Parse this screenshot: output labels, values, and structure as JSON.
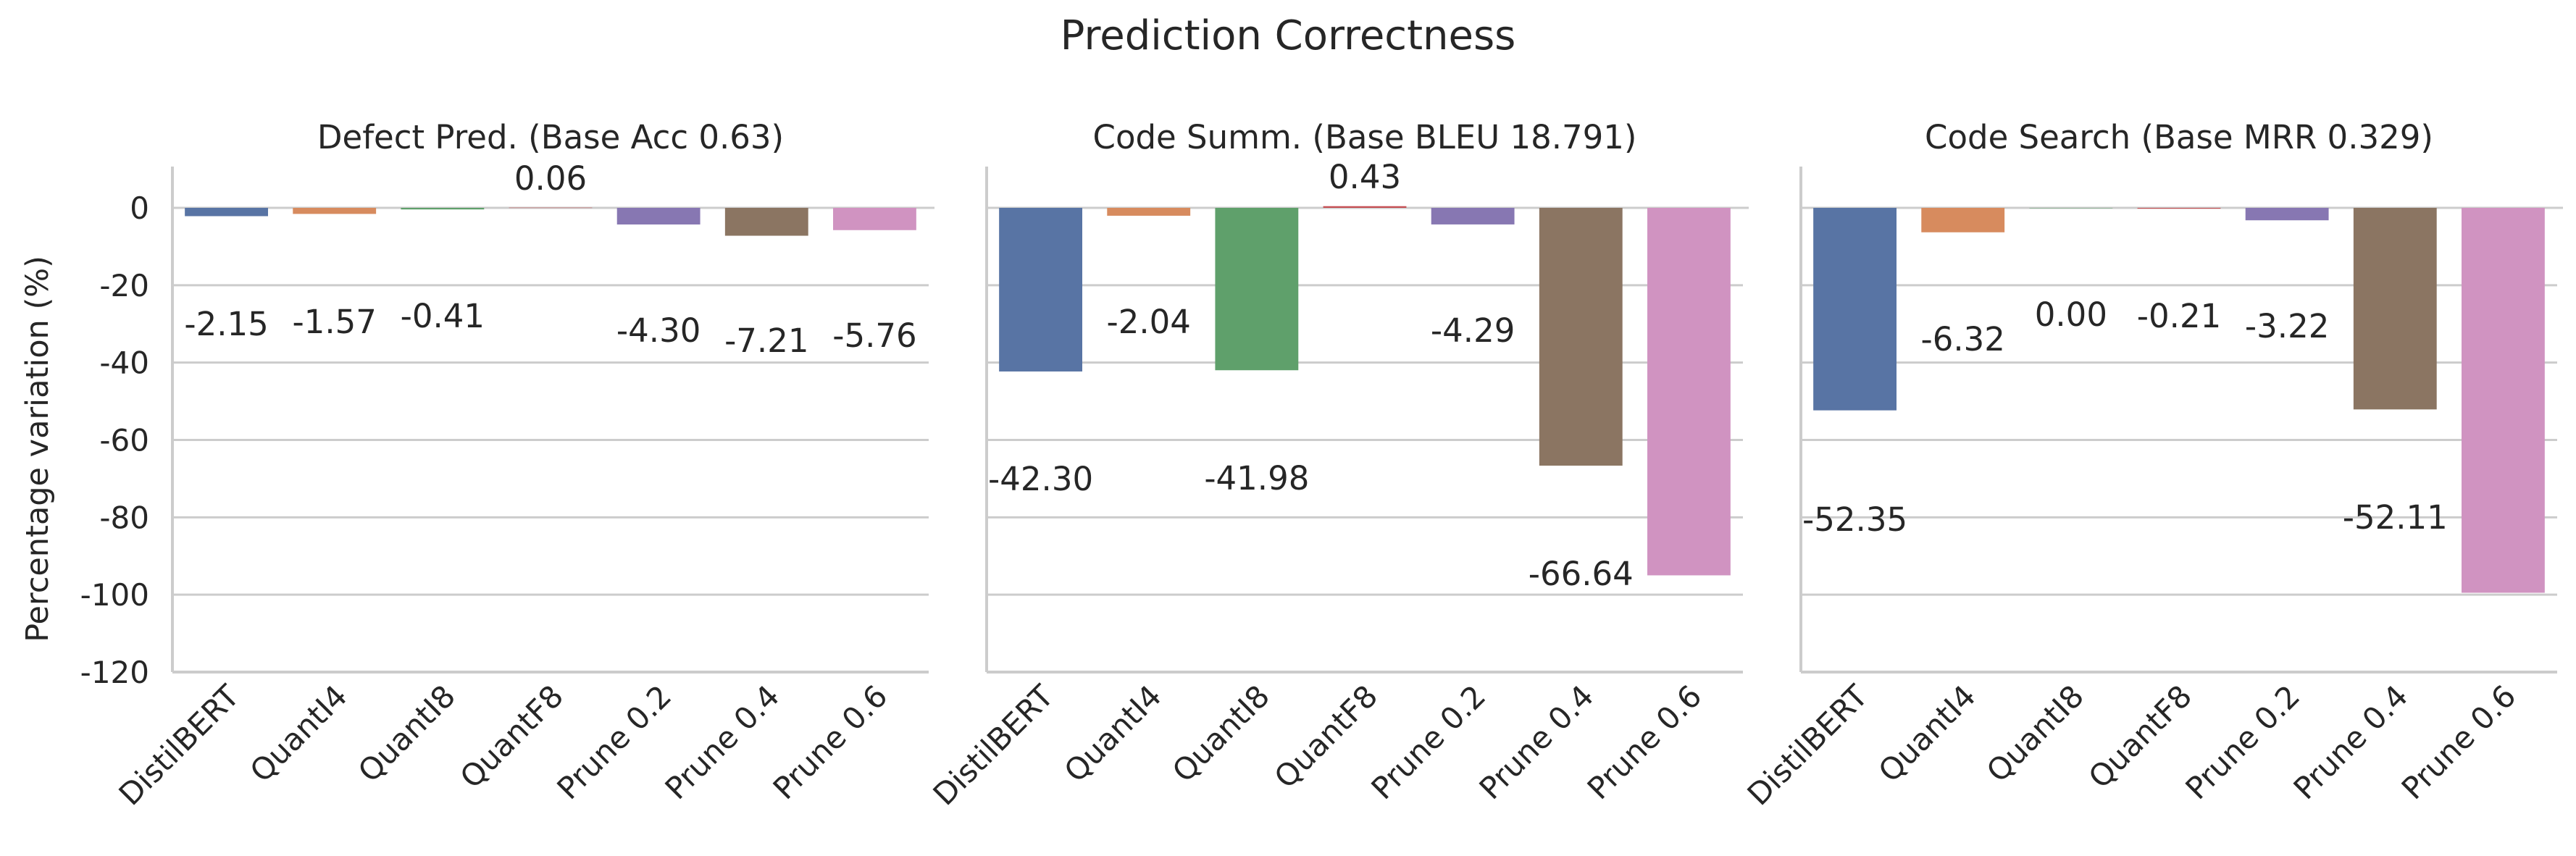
{
  "figure_title": "Prediction Correctness",
  "chart_data": [
    {
      "type": "bar",
      "title": "Defect Pred. (Base Acc 0.63)",
      "xlabel": "",
      "ylabel": "Percentage variation (%)",
      "ylim": [
        -120,
        10
      ],
      "yticks": [
        0,
        -20,
        -40,
        -60,
        -80,
        -100,
        -120
      ],
      "grid": true,
      "categories": [
        "DistilBERT",
        "QuantI4",
        "QuantI8",
        "QuantF8",
        "Prune 0.2",
        "Prune 0.4",
        "Prune 0.6"
      ],
      "values": [
        -2.15,
        -1.57,
        -0.41,
        0.06,
        -4.3,
        -7.21,
        -5.76
      ],
      "value_labels": [
        "-2.15",
        "-1.57",
        "-0.41",
        "0.06",
        "-4.30",
        "-7.21",
        "-5.76"
      ]
    },
    {
      "type": "bar",
      "title": "Code Summ. (Base BLEU 18.791)",
      "xlabel": "",
      "ylabel": "",
      "ylim": [
        -120,
        10
      ],
      "grid": true,
      "categories": [
        "DistilBERT",
        "QuantI4",
        "QuantI8",
        "QuantF8",
        "Prune 0.2",
        "Prune 0.4",
        "Prune 0.6"
      ],
      "values": [
        -42.3,
        -2.04,
        -41.98,
        0.43,
        -4.29,
        -66.64,
        -95.0
      ],
      "value_labels": [
        "-42.30",
        "-2.04",
        "-41.98",
        "0.43",
        "-4.29",
        "-66.64",
        ""
      ]
    },
    {
      "type": "bar",
      "title": "Code Search (Base MRR 0.329)",
      "xlabel": "",
      "ylabel": "",
      "ylim": [
        -120,
        10
      ],
      "grid": true,
      "categories": [
        "DistilBERT",
        "QuantI4",
        "QuantI8",
        "QuantF8",
        "Prune 0.2",
        "Prune 0.4",
        "Prune 0.6"
      ],
      "values": [
        -52.35,
        -6.32,
        0.0,
        -0.21,
        -3.22,
        -52.11,
        -99.5
      ],
      "value_labels": [
        "-52.35",
        "-6.32",
        "0.00",
        "-0.21",
        "-3.22",
        "-52.11",
        ""
      ]
    }
  ],
  "colors": {
    "DistilBERT": "#5874a4",
    "QuantI4": "#d78b5e",
    "QuantI8": "#5fa06b",
    "QuantF8": "#c44e52",
    "Prune 0.2": "#8777b2",
    "Prune 0.4": "#8b7562",
    "Prune 0.6": "#d093c1"
  }
}
